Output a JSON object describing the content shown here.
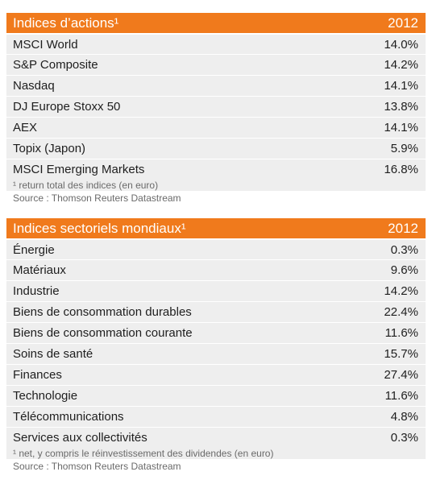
{
  "equity_indices": {
    "title": "Indices d’actions¹",
    "year": "2012",
    "rows": [
      {
        "label": "MSCI World",
        "value": "14.0%"
      },
      {
        "label": "S&P Composite",
        "value": "14.2%"
      },
      {
        "label": "Nasdaq",
        "value": "14.1%"
      },
      {
        "label": "DJ Europe Stoxx 50",
        "value": "13.8%"
      },
      {
        "label": "AEX",
        "value": "14.1%"
      },
      {
        "label": "Topix (Japon)",
        "value": "5.9%"
      },
      {
        "label": "MSCI Emerging Markets",
        "value": "16.8%"
      }
    ],
    "footnote": "¹ return total des indices (en euro)",
    "source": "Source : Thomson Reuters Datastream"
  },
  "sector_indices": {
    "title": "Indices sectoriels mondiaux¹",
    "year": "2012",
    "rows": [
      {
        "label": "Énergie",
        "value": "0.3%"
      },
      {
        "label": "Matériaux",
        "value": "9.6%"
      },
      {
        "label": "Industrie",
        "value": "14.2%"
      },
      {
        "label": "Biens de consommation durables",
        "value": "22.4%"
      },
      {
        "label": "Biens de consommation courante",
        "value": "11.6%"
      },
      {
        "label": "Soins de santé",
        "value": "15.7%"
      },
      {
        "label": "Finances",
        "value": "27.4%"
      },
      {
        "label": "Technologie",
        "value": "11.6%"
      },
      {
        "label": "Télécommunications",
        "value": "4.8%"
      },
      {
        "label": "Services aux collectivités",
        "value": "0.3%"
      }
    ],
    "footnote": "¹ net, y compris le réinvestissement des dividendes (en euro)",
    "source": "Source : Thomson Reuters Datastream"
  },
  "colors": {
    "header_bg": "#f07a1c",
    "row_bg": "#eeeeee"
  }
}
